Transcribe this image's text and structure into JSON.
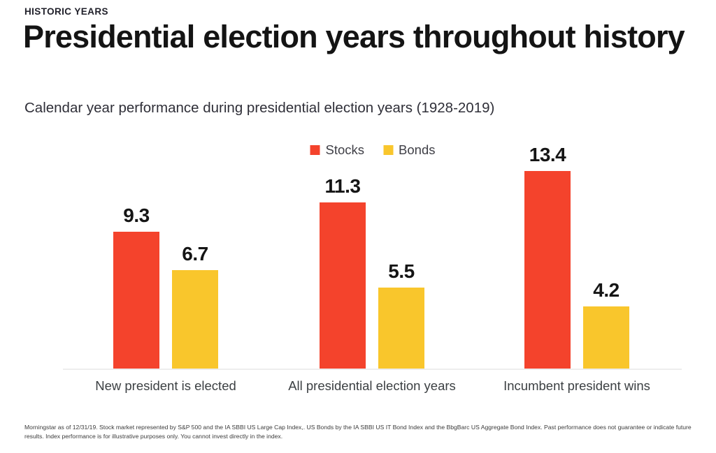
{
  "header": {
    "eyebrow": "HISTORIC YEARS",
    "title": "Presidential election years throughout history",
    "subtitle": "Calendar year performance during presidential election years (1928-2019)"
  },
  "colors": {
    "stocks": "#F4432C",
    "bonds": "#F9C62C",
    "baseline": "#EDEDED"
  },
  "chart_data": {
    "type": "bar",
    "categories": [
      "New president is elected",
      "All presidential election years",
      "Incumbent president wins"
    ],
    "series": [
      {
        "name": "Stocks",
        "color": "#F4432C",
        "values": [
          9.3,
          11.3,
          13.4
        ]
      },
      {
        "name": "Bonds",
        "color": "#F9C62C",
        "values": [
          6.7,
          5.5,
          4.2
        ]
      }
    ],
    "title": "Presidential election years throughout history",
    "xlabel": "",
    "ylabel": "",
    "ylim": [
      0,
      14
    ],
    "grid": false,
    "legend_position": "top-center",
    "value_labels": true
  },
  "footnote": {
    "text": "Morningstar as of 12/31/19. Stock market represented by S&P 500 and the IA SBBI US Large Cap Index,. US Bonds by the IA SBBI US IT Bond Index and the BbgBarc US Aggregate Bond Index. Past performance does not guarantee or indicate future results. Index performance is for illustrative purposes only. You cannot invest directly in the index."
  }
}
